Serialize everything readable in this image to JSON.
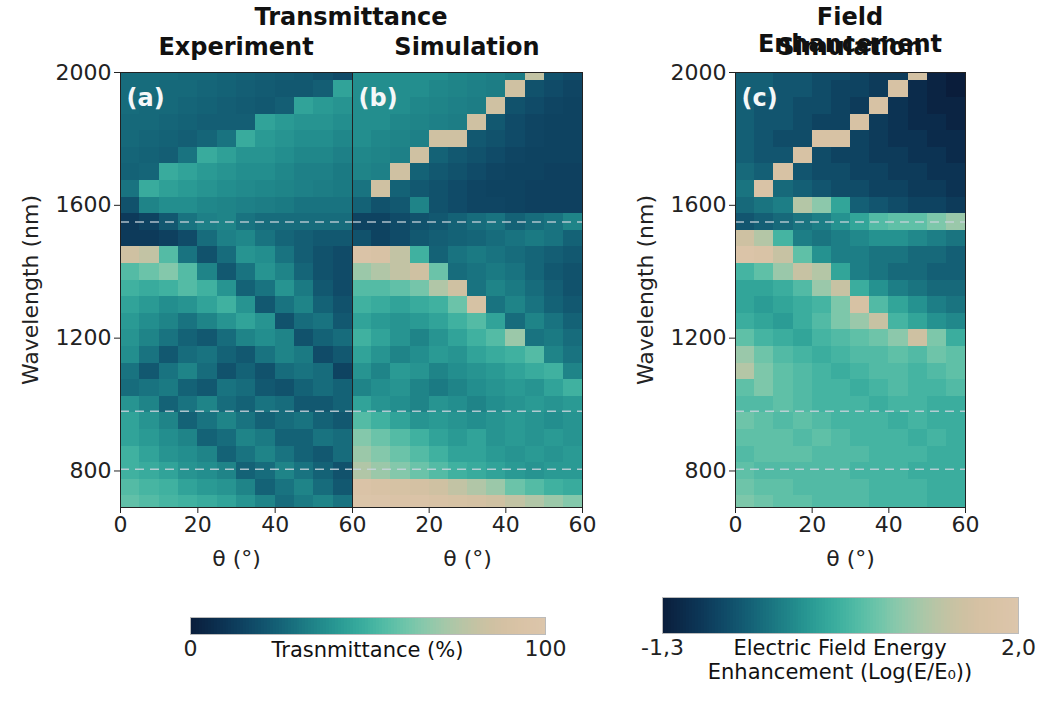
{
  "chart_data": [
    {
      "type": "heatmap",
      "panel": "(a)",
      "supertitle": "Transmittance",
      "title": "Experiment",
      "xlabel": "θ (°)",
      "ylabel": "Wavelength (nm)",
      "xlim": [
        0,
        60
      ],
      "xticks": [
        0,
        20,
        40,
        60
      ],
      "ylim": [
        690,
        2000
      ],
      "yticks": [
        800,
        1200,
        1600,
        2000
      ],
      "hlines": [
        1550,
        980,
        805
      ],
      "zlim": [
        0,
        100
      ],
      "colorbar": {
        "ticks": [
          0,
          100
        ],
        "label": "Trasnmittance (%)"
      },
      "x": [
        2.5,
        7.5,
        12.5,
        17.5,
        22.5,
        27.5,
        32.5,
        37.5,
        42.5,
        47.5,
        52.5,
        57.5
      ],
      "y": [
        2000,
        1950,
        1900,
        1850,
        1800,
        1750,
        1700,
        1650,
        1600,
        1550,
        1500,
        1450,
        1400,
        1350,
        1300,
        1250,
        1200,
        1150,
        1100,
        1050,
        1000,
        950,
        900,
        850,
        800,
        750,
        700
      ],
      "z": [
        [
          28,
          28,
          28,
          27,
          27,
          26,
          25,
          24,
          23,
          22,
          20,
          18
        ],
        [
          28,
          28,
          27,
          27,
          26,
          25,
          24,
          23,
          22,
          22,
          24,
          45
        ],
        [
          28,
          27,
          27,
          26,
          25,
          24,
          23,
          22,
          24,
          45,
          42,
          40
        ],
        [
          27,
          27,
          26,
          25,
          24,
          24,
          24,
          45,
          42,
          40,
          40,
          38
        ],
        [
          27,
          26,
          25,
          24,
          26,
          30,
          48,
          42,
          40,
          38,
          38,
          36
        ],
        [
          26,
          25,
          24,
          30,
          48,
          44,
          40,
          40,
          38,
          36,
          36,
          34
        ],
        [
          25,
          26,
          48,
          45,
          42,
          40,
          38,
          38,
          36,
          34,
          34,
          32
        ],
        [
          30,
          48,
          44,
          42,
          40,
          38,
          37,
          36,
          35,
          34,
          33,
          32
        ],
        [
          20,
          35,
          38,
          38,
          36,
          35,
          34,
          33,
          32,
          30,
          30,
          30
        ],
        [
          12,
          15,
          22,
          30,
          34,
          35,
          30,
          28,
          28,
          28,
          28,
          28
        ],
        [
          12,
          12,
          14,
          18,
          28,
          34,
          36,
          30,
          26,
          24,
          22,
          22
        ],
        [
          85,
          80,
          55,
          30,
          20,
          28,
          40,
          38,
          30,
          24,
          20,
          18
        ],
        [
          55,
          60,
          65,
          55,
          35,
          22,
          30,
          40,
          35,
          26,
          20,
          18
        ],
        [
          50,
          48,
          50,
          55,
          50,
          40,
          25,
          30,
          40,
          32,
          22,
          18
        ],
        [
          45,
          42,
          38,
          40,
          45,
          50,
          40,
          22,
          30,
          35,
          25,
          20
        ],
        [
          42,
          38,
          35,
          30,
          35,
          40,
          45,
          40,
          20,
          28,
          30,
          22
        ],
        [
          40,
          35,
          30,
          25,
          22,
          28,
          35,
          38,
          35,
          20,
          25,
          28
        ],
        [
          38,
          30,
          22,
          28,
          30,
          25,
          22,
          30,
          35,
          32,
          18,
          22
        ],
        [
          30,
          22,
          30,
          35,
          28,
          20,
          25,
          20,
          28,
          30,
          28,
          15
        ],
        [
          28,
          30,
          32,
          25,
          22,
          30,
          28,
          22,
          20,
          25,
          28,
          25
        ],
        [
          40,
          35,
          25,
          30,
          35,
          28,
          25,
          30,
          28,
          22,
          22,
          25
        ],
        [
          45,
          40,
          35,
          25,
          30,
          35,
          30,
          25,
          28,
          30,
          25,
          22
        ],
        [
          45,
          42,
          38,
          35,
          25,
          28,
          35,
          32,
          25,
          25,
          30,
          28
        ],
        [
          50,
          45,
          40,
          38,
          35,
          25,
          30,
          35,
          30,
          25,
          22,
          28
        ],
        [
          50,
          48,
          45,
          40,
          38,
          35,
          25,
          28,
          35,
          30,
          25,
          20
        ],
        [
          55,
          52,
          50,
          45,
          42,
          40,
          35,
          25,
          30,
          35,
          28,
          22
        ],
        [
          58,
          55,
          52,
          50,
          48,
          45,
          40,
          35,
          28,
          32,
          35,
          30
        ]
      ]
    },
    {
      "type": "heatmap",
      "panel": "(b)",
      "title": "Simulation",
      "xlabel": "θ (°)",
      "tick_labels": "x",
      "xlim": [
        0,
        60
      ],
      "xticks": [
        20,
        40,
        60
      ],
      "ylim": [
        690,
        2000
      ],
      "yticks": [
        800,
        1200,
        1600,
        2000
      ],
      "hlines": [
        1550,
        980,
        805
      ],
      "zlim": [
        0,
        100
      ],
      "x": [
        2.5,
        7.5,
        12.5,
        17.5,
        22.5,
        27.5,
        32.5,
        37.5,
        42.5,
        47.5,
        52.5,
        57.5
      ],
      "y": [
        2000,
        1950,
        1900,
        1850,
        1800,
        1750,
        1700,
        1650,
        1600,
        1550,
        1500,
        1450,
        1400,
        1350,
        1300,
        1250,
        1200,
        1150,
        1100,
        1050,
        1000,
        950,
        900,
        850,
        800,
        750,
        700
      ],
      "z": [
        [
          38,
          38,
          38,
          38,
          38,
          36,
          35,
          34,
          32,
          80,
          20,
          18
        ],
        [
          38,
          38,
          38,
          38,
          36,
          35,
          34,
          33,
          85,
          20,
          18,
          16
        ],
        [
          38,
          38,
          38,
          36,
          35,
          34,
          33,
          85,
          20,
          18,
          16,
          15
        ],
        [
          38,
          38,
          36,
          35,
          34,
          33,
          85,
          22,
          18,
          16,
          15,
          15
        ],
        [
          38,
          36,
          35,
          34,
          85,
          85,
          22,
          20,
          18,
          16,
          15,
          15
        ],
        [
          36,
          35,
          34,
          85,
          25,
          22,
          20,
          18,
          16,
          15,
          15,
          15
        ],
        [
          35,
          34,
          85,
          25,
          22,
          20,
          18,
          16,
          15,
          15,
          14,
          14
        ],
        [
          30,
          85,
          25,
          22,
          20,
          18,
          16,
          15,
          15,
          14,
          14,
          14
        ],
        [
          25,
          20,
          22,
          35,
          20,
          18,
          16,
          16,
          15,
          14,
          14,
          14
        ],
        [
          15,
          15,
          18,
          20,
          22,
          25,
          28,
          30,
          25,
          28,
          30,
          35
        ],
        [
          20,
          15,
          18,
          22,
          24,
          25,
          26,
          28,
          30,
          32,
          30,
          25
        ],
        [
          95,
          92,
          80,
          50,
          25,
          30,
          32,
          30,
          28,
          26,
          24,
          22
        ],
        [
          70,
          75,
          80,
          85,
          60,
          28,
          30,
          32,
          30,
          26,
          22,
          20
        ],
        [
          55,
          55,
          58,
          62,
          75,
          85,
          30,
          35,
          32,
          28,
          24,
          20
        ],
        [
          50,
          48,
          45,
          48,
          50,
          60,
          90,
          30,
          35,
          30,
          25,
          22
        ],
        [
          45,
          42,
          40,
          42,
          45,
          50,
          55,
          45,
          28,
          35,
          30,
          25
        ],
        [
          50,
          45,
          40,
          35,
          40,
          45,
          50,
          55,
          70,
          30,
          32,
          28
        ],
        [
          45,
          40,
          35,
          38,
          42,
          40,
          45,
          48,
          50,
          55,
          35,
          30
        ],
        [
          40,
          35,
          42,
          40,
          35,
          38,
          40,
          42,
          45,
          48,
          50,
          35
        ],
        [
          35,
          38,
          40,
          35,
          32,
          35,
          38,
          40,
          42,
          40,
          45,
          50
        ],
        [
          45,
          40,
          38,
          35,
          40,
          38,
          35,
          38,
          40,
          42,
          40,
          42
        ],
        [
          55,
          50,
          45,
          40,
          42,
          40,
          38,
          40,
          42,
          40,
          38,
          40
        ],
        [
          65,
          60,
          55,
          50,
          45,
          42,
          45,
          40,
          42,
          40,
          42,
          40
        ],
        [
          70,
          65,
          60,
          55,
          50,
          45,
          45,
          42,
          40,
          42,
          40,
          42
        ],
        [
          75,
          70,
          65,
          60,
          55,
          50,
          48,
          45,
          42,
          40,
          42,
          42
        ],
        [
          95,
          92,
          90,
          88,
          85,
          80,
          75,
          70,
          60,
          55,
          50,
          48
        ],
        [
          98,
          97,
          95,
          95,
          92,
          90,
          88,
          85,
          80,
          75,
          70,
          65
        ]
      ]
    },
    {
      "type": "heatmap",
      "panel": "(c)",
      "supertitle": "Field Enhancement",
      "title": "Simulation",
      "xlabel": "θ (°)",
      "ylabel": "Wavelength (nm)",
      "xlim": [
        0,
        60
      ],
      "xticks": [
        0,
        20,
        40,
        60
      ],
      "ylim": [
        690,
        2000
      ],
      "yticks": [
        800,
        1200,
        1600,
        2000
      ],
      "hlines": [
        1550,
        980,
        805
      ],
      "zlim": [
        -1.3,
        2.0
      ],
      "colorbar": {
        "ticks": [
          {
            "value": -1.3,
            "label": "-1,3"
          },
          {
            "value": 2.0,
            "label": "2,0"
          }
        ],
        "label": "Electric Field Energy Enhancement (Log(E/E₀))"
      },
      "x": [
        2.5,
        7.5,
        12.5,
        17.5,
        22.5,
        27.5,
        32.5,
        37.5,
        42.5,
        47.5,
        52.5,
        57.5
      ],
      "y": [
        2000,
        1950,
        1900,
        1850,
        1800,
        1750,
        1700,
        1650,
        1600,
        1550,
        1500,
        1450,
        1400,
        1350,
        1300,
        1250,
        1200,
        1150,
        1100,
        1050,
        1000,
        950,
        900,
        850,
        800,
        750,
        700
      ],
      "z": [
        [
          -0.5,
          -0.5,
          -0.6,
          -0.6,
          -0.7,
          -0.7,
          -0.8,
          -0.9,
          -0.9,
          1.6,
          -1.2,
          -1.3
        ],
        [
          -0.5,
          -0.5,
          -0.6,
          -0.6,
          -0.7,
          -0.8,
          -0.8,
          -0.9,
          1.7,
          -1.1,
          -1.2,
          -1.3
        ],
        [
          -0.5,
          -0.6,
          -0.6,
          -0.7,
          -0.7,
          -0.8,
          -0.9,
          1.7,
          -1.0,
          -1.1,
          -1.2,
          -1.2
        ],
        [
          -0.5,
          -0.6,
          -0.6,
          -0.7,
          -0.8,
          -0.8,
          1.7,
          -0.9,
          -1.0,
          -1.1,
          -1.1,
          -1.2
        ],
        [
          -0.5,
          -0.6,
          -0.7,
          -0.7,
          1.7,
          1.7,
          -0.8,
          -0.9,
          -1.0,
          -1.0,
          -1.1,
          -1.1
        ],
        [
          -0.5,
          -0.6,
          -0.6,
          1.7,
          -0.7,
          -0.8,
          -0.8,
          -0.9,
          -0.9,
          -1.0,
          -1.0,
          -1.1
        ],
        [
          -0.4,
          -0.5,
          1.7,
          -0.6,
          -0.7,
          -0.7,
          -0.8,
          -0.8,
          -0.9,
          -0.9,
          -1.0,
          -1.0
        ],
        [
          -0.3,
          1.8,
          -0.4,
          -0.5,
          -0.6,
          -0.7,
          -0.7,
          -0.8,
          -0.8,
          -0.9,
          -0.9,
          -1.0
        ],
        [
          -0.4,
          -0.3,
          -0.2,
          1.2,
          0.9,
          0.2,
          -0.5,
          -0.6,
          -0.7,
          -0.8,
          -0.8,
          -0.9
        ],
        [
          -0.6,
          -0.5,
          -0.4,
          -0.3,
          -0.2,
          0.0,
          0.2,
          0.5,
          0.6,
          0.6,
          0.8,
          1.0
        ],
        [
          1.5,
          1.2,
          0.4,
          -0.2,
          -0.3,
          -0.2,
          -0.1,
          0.0,
          0.0,
          -0.1,
          -0.2,
          -0.3
        ],
        [
          1.9,
          1.8,
          1.4,
          0.6,
          0.0,
          -0.2,
          -0.2,
          -0.3,
          -0.3,
          -0.4,
          -0.4,
          -0.5
        ],
        [
          0.4,
          0.6,
          1.0,
          1.4,
          1.2,
          0.2,
          -0.2,
          -0.3,
          -0.4,
          -0.4,
          -0.5,
          -0.5
        ],
        [
          0.2,
          0.2,
          0.3,
          0.5,
          1.0,
          1.4,
          0.3,
          0.0,
          -0.2,
          -0.3,
          -0.4,
          -0.4
        ],
        [
          0.2,
          0.1,
          0.2,
          0.3,
          0.4,
          0.8,
          1.7,
          0.5,
          0.2,
          0.0,
          -0.2,
          -0.3
        ],
        [
          0.3,
          0.2,
          0.1,
          0.3,
          0.5,
          0.8,
          1.0,
          1.4,
          0.4,
          0.2,
          0.0,
          -0.1
        ],
        [
          0.6,
          0.4,
          0.3,
          0.2,
          0.4,
          0.5,
          0.6,
          0.7,
          0.9,
          1.5,
          0.8,
          0.3
        ],
        [
          1.0,
          0.7,
          0.5,
          0.4,
          0.3,
          0.4,
          0.5,
          0.5,
          0.6,
          0.5,
          0.7,
          0.6
        ],
        [
          1.2,
          0.8,
          0.6,
          0.5,
          0.4,
          0.3,
          0.4,
          0.5,
          0.5,
          0.4,
          0.5,
          0.6
        ],
        [
          0.6,
          0.8,
          0.6,
          0.5,
          0.4,
          0.4,
          0.3,
          0.4,
          0.5,
          0.4,
          0.4,
          0.5
        ],
        [
          0.5,
          0.5,
          0.6,
          0.5,
          0.4,
          0.4,
          0.4,
          0.3,
          0.4,
          0.4,
          0.3,
          0.3
        ],
        [
          0.7,
          0.6,
          0.5,
          0.6,
          0.5,
          0.4,
          0.4,
          0.4,
          0.3,
          0.4,
          0.3,
          0.3
        ],
        [
          0.6,
          0.6,
          0.6,
          0.5,
          0.6,
          0.5,
          0.4,
          0.4,
          0.4,
          0.3,
          0.4,
          0.3
        ],
        [
          0.5,
          0.6,
          0.6,
          0.6,
          0.5,
          0.5,
          0.5,
          0.4,
          0.4,
          0.4,
          0.3,
          0.3
        ],
        [
          0.6,
          0.5,
          0.5,
          0.5,
          0.5,
          0.5,
          0.4,
          0.4,
          0.4,
          0.3,
          0.3,
          0.3
        ],
        [
          0.7,
          0.6,
          0.6,
          0.5,
          0.5,
          0.5,
          0.5,
          0.4,
          0.4,
          0.4,
          0.3,
          0.3
        ],
        [
          0.8,
          0.7,
          0.6,
          0.6,
          0.5,
          0.5,
          0.5,
          0.4,
          0.4,
          0.4,
          0.3,
          0.3
        ]
      ]
    }
  ]
}
